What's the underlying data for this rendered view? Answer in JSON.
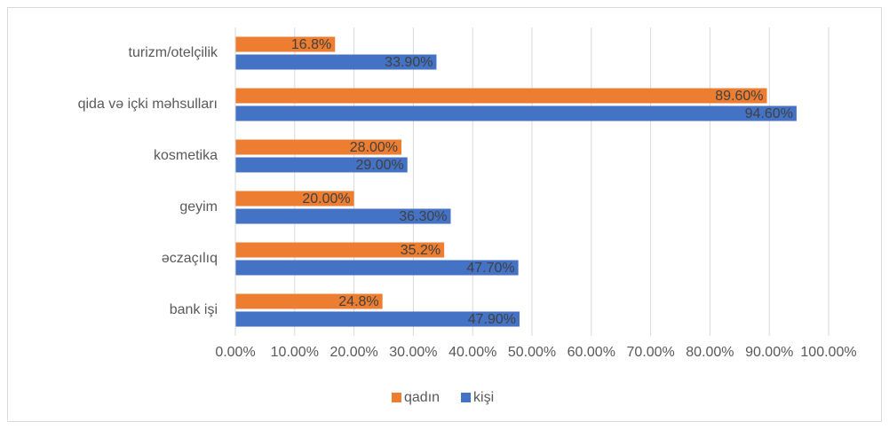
{
  "chart_data": {
    "type": "bar",
    "orientation": "horizontal",
    "categories": [
      "turizm/otelçilik",
      "qida və içki məhsulları",
      "kosmetika",
      "geyim",
      "əczaçılıq",
      "bank işi"
    ],
    "series": [
      {
        "name": "qadın",
        "color": "#ed7d31",
        "values": [
          16.8,
          89.6,
          28,
          20,
          35.2,
          24.8
        ],
        "value_labels": [
          "16.8%",
          "89.60%",
          "28.00%",
          "20.00%",
          "35.2%",
          "24.8%"
        ]
      },
      {
        "name": "kişi",
        "color": "#4472c4",
        "values": [
          33.9,
          94.6,
          29,
          36.3,
          47.7,
          47.9
        ],
        "value_labels": [
          "33.90%",
          "94.60%",
          "29.00%",
          "36.30%",
          "47.70%",
          "47.90%"
        ]
      }
    ],
    "xlim": [
      0,
      100
    ],
    "xticks": [
      {
        "value": 0,
        "label": "0.00%"
      },
      {
        "value": 10,
        "label": "10.00%"
      },
      {
        "value": 20,
        "label": "20.00%"
      },
      {
        "value": 30,
        "label": "30.00%"
      },
      {
        "value": 40,
        "label": "40.00%"
      },
      {
        "value": 50,
        "label": "50.00%"
      },
      {
        "value": 60,
        "label": "60.00%"
      },
      {
        "value": 70,
        "label": "70.00%"
      },
      {
        "value": 80,
        "label": "80.00%"
      },
      {
        "value": 90,
        "label": "90.00%"
      },
      {
        "value": 100,
        "label": "100.00%"
      }
    ],
    "grid": true,
    "legend": "bottom"
  }
}
